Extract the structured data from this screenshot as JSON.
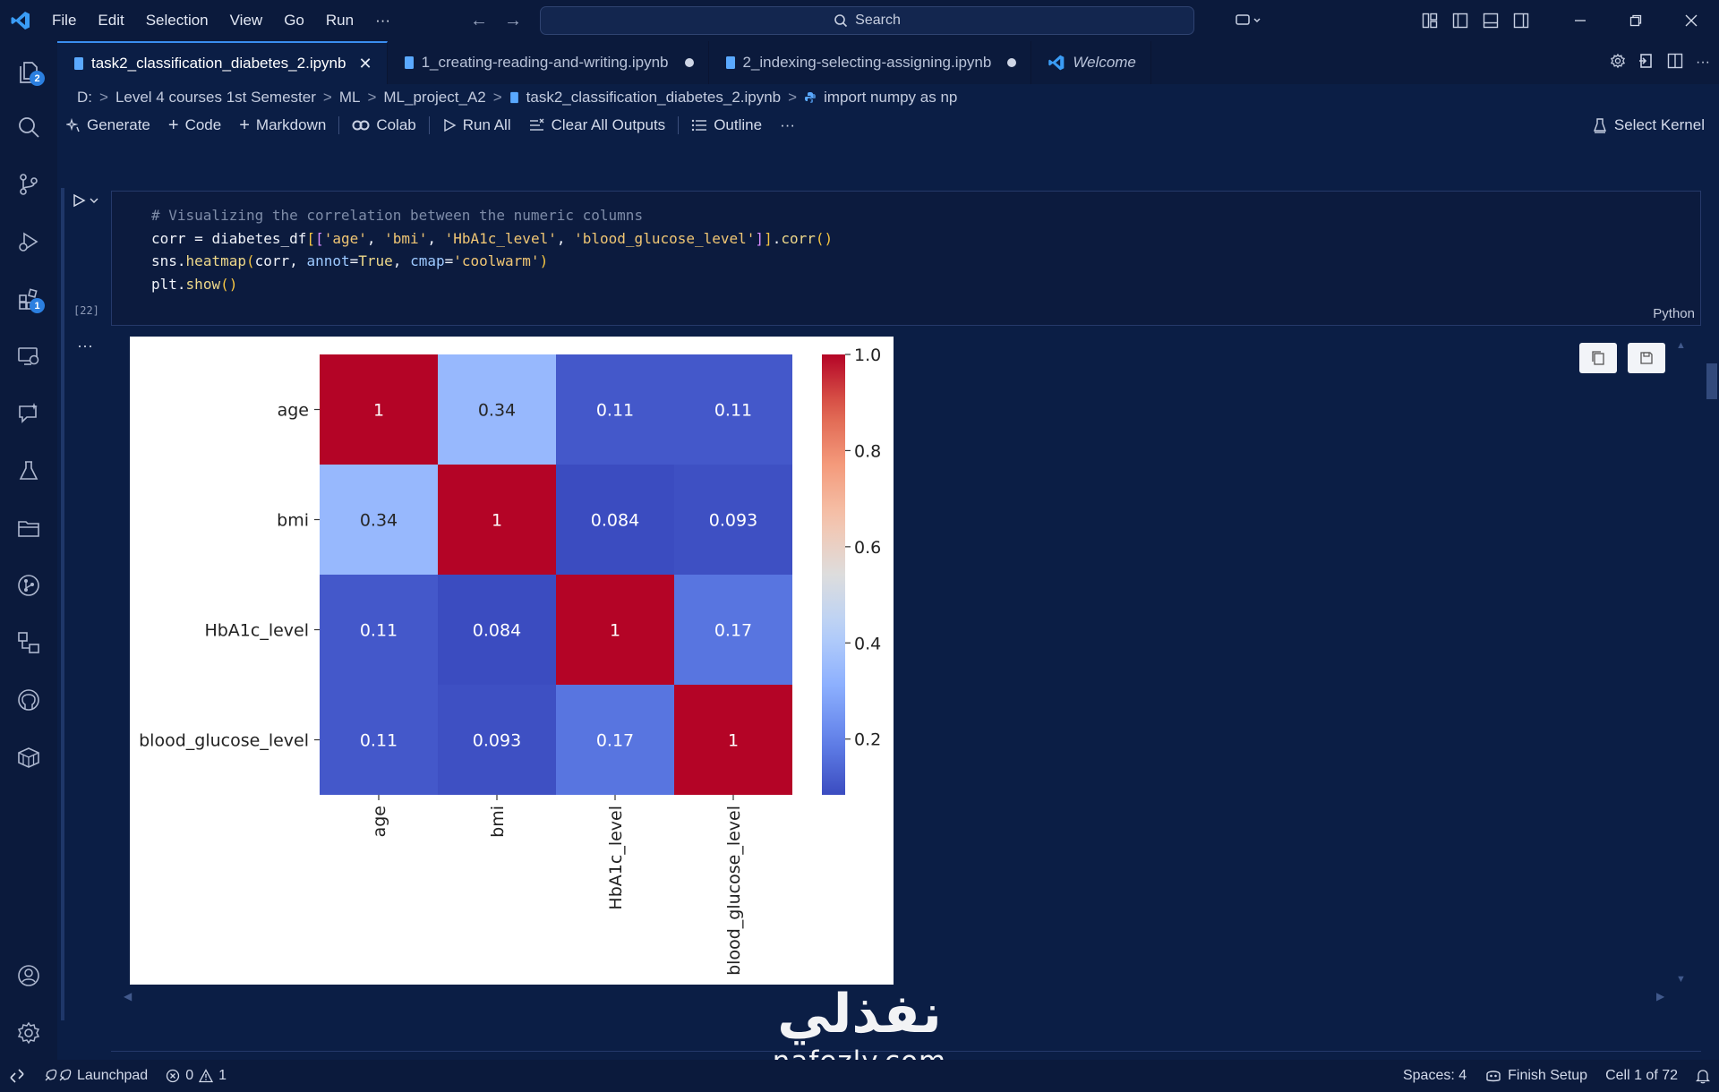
{
  "menu": [
    "File",
    "Edit",
    "Selection",
    "View",
    "Go",
    "Run",
    "···"
  ],
  "search": {
    "label": "Search"
  },
  "tabs": [
    {
      "label": "task2_classification_diabetes_2.ipynb",
      "active": true,
      "state": "close"
    },
    {
      "label": "1_creating-reading-and-writing.ipynb",
      "active": false,
      "state": "modified"
    },
    {
      "label": "2_indexing-selecting-assigning.ipynb",
      "active": false,
      "state": "modified"
    },
    {
      "label": "Welcome",
      "active": false,
      "state": "none"
    }
  ],
  "breadcrumb": [
    "D:",
    "Level 4 courses 1st Semester",
    "ML",
    "ML_project_A2",
    "task2_classification_diabetes_2.ipynb",
    "import numpy as np"
  ],
  "toolbar": {
    "generate": "Generate",
    "code": "Code",
    "markdown": "Markdown",
    "colab": "Colab",
    "run_all": "Run All",
    "clear_all": "Clear All Outputs",
    "outline": "Outline",
    "more": "···",
    "kernel": "Select Kernel"
  },
  "activity_badges": {
    "explorer": "2",
    "extensions": "1"
  },
  "cell": {
    "exec_count": "[22]",
    "language": "Python",
    "output_more": "···"
  },
  "chart_data": {
    "type": "heatmap",
    "rows": [
      "age",
      "bmi",
      "HbA1c_level",
      "blood_glucose_level"
    ],
    "cols": [
      "age",
      "bmi",
      "HbA1c_level",
      "blood_glucose_level"
    ],
    "values": [
      [
        1,
        0.34,
        0.11,
        0.11
      ],
      [
        0.34,
        1,
        0.084,
        0.093
      ],
      [
        0.11,
        0.084,
        1,
        0.17
      ],
      [
        0.11,
        0.093,
        0.17,
        1
      ]
    ],
    "annotations": [
      [
        "1",
        "0.34",
        "0.11",
        "0.11"
      ],
      [
        "0.34",
        "1",
        "0.084",
        "0.093"
      ],
      [
        "0.11",
        "0.084",
        "1",
        "0.17"
      ],
      [
        "0.11",
        "0.093",
        "0.17",
        "1"
      ]
    ],
    "colormap": "coolwarm",
    "colorbar": {
      "min": 0.084,
      "max": 1.0,
      "ticks": [
        1.0,
        0.8,
        0.6,
        0.4,
        0.2
      ],
      "tick_labels": [
        "1.0",
        "0.8",
        "0.6",
        "0.4",
        "0.2"
      ]
    }
  },
  "watermark": {
    "arabic": "نفذلي",
    "latin": "nafezly.com"
  },
  "status": {
    "launchpad": "Launchpad",
    "errors": "0",
    "warnings": "1",
    "spaces": "Spaces: 4",
    "finish_setup": "Finish Setup",
    "cell_pos": "Cell 1 of 72"
  },
  "colors": {
    "accent": "#3a8ef0",
    "background": "#0b1e45",
    "badge": "#2b7fe0"
  }
}
